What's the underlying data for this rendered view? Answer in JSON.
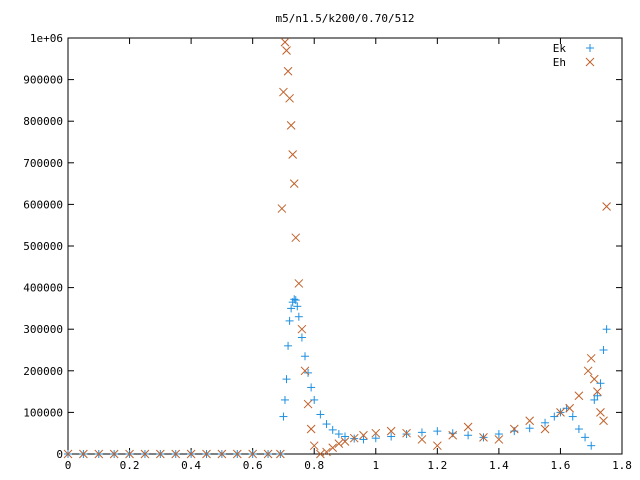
{
  "chart_data": {
    "type": "scatter",
    "title": "m5/n1.5/k200/0.70/512",
    "xlabel": "",
    "ylabel": "",
    "xlim": [
      0,
      1.8
    ],
    "ylim": [
      0,
      1000000
    ],
    "x_ticks": [
      "0",
      "0.2",
      "0.4",
      "0.6",
      "0.8",
      "1",
      "1.2",
      "1.4",
      "1.6",
      "1.8"
    ],
    "x_tick_values": [
      0,
      0.2,
      0.4,
      0.6,
      0.8,
      1.0,
      1.2,
      1.4,
      1.6,
      1.8
    ],
    "y_ticks": [
      "0",
      "100000",
      "200000",
      "300000",
      "400000",
      "500000",
      "600000",
      "700000",
      "800000",
      "900000",
      "1e+06"
    ],
    "y_tick_values": [
      0,
      100000,
      200000,
      300000,
      400000,
      500000,
      600000,
      700000,
      800000,
      900000,
      1000000
    ],
    "grid": false,
    "legend_position": "top-right",
    "series": [
      {
        "name": "Ek",
        "marker": "plus",
        "color": "#1e90e0",
        "x": [
          0.0,
          0.05,
          0.1,
          0.15,
          0.2,
          0.25,
          0.3,
          0.35,
          0.4,
          0.45,
          0.5,
          0.55,
          0.6,
          0.65,
          0.69,
          0.7,
          0.705,
          0.71,
          0.715,
          0.72,
          0.725,
          0.73,
          0.735,
          0.74,
          0.745,
          0.75,
          0.76,
          0.77,
          0.78,
          0.79,
          0.8,
          0.82,
          0.84,
          0.86,
          0.88,
          0.9,
          0.93,
          0.96,
          1.0,
          1.05,
          1.1,
          1.15,
          1.2,
          1.25,
          1.3,
          1.35,
          1.4,
          1.45,
          1.5,
          1.55,
          1.58,
          1.6,
          1.62,
          1.64,
          1.66,
          1.68,
          1.7,
          1.71,
          1.72,
          1.73,
          1.74,
          1.75
        ],
        "y": [
          0,
          0,
          0,
          0,
          0,
          0,
          0,
          0,
          0,
          0,
          0,
          0,
          0,
          0,
          0,
          90000,
          130000,
          180000,
          260000,
          320000,
          350000,
          365000,
          372000,
          370000,
          355000,
          330000,
          280000,
          235000,
          195000,
          160000,
          130000,
          95000,
          72000,
          58000,
          48000,
          42000,
          37000,
          35000,
          38000,
          42000,
          48000,
          52000,
          55000,
          50000,
          45000,
          40000,
          48000,
          55000,
          62000,
          75000,
          90000,
          100000,
          110000,
          90000,
          60000,
          40000,
          20000,
          130000,
          140000,
          170000,
          250000,
          300000
        ]
      },
      {
        "name": "Eh",
        "marker": "cross",
        "color": "#c0602a",
        "x": [
          0.0,
          0.05,
          0.1,
          0.15,
          0.2,
          0.25,
          0.3,
          0.35,
          0.4,
          0.45,
          0.5,
          0.55,
          0.6,
          0.65,
          0.69,
          0.695,
          0.7,
          0.705,
          0.71,
          0.715,
          0.72,
          0.725,
          0.73,
          0.735,
          0.74,
          0.75,
          0.76,
          0.77,
          0.78,
          0.79,
          0.8,
          0.82,
          0.84,
          0.86,
          0.88,
          0.9,
          0.93,
          0.96,
          1.0,
          1.05,
          1.1,
          1.15,
          1.2,
          1.25,
          1.3,
          1.35,
          1.4,
          1.45,
          1.5,
          1.55,
          1.6,
          1.63,
          1.66,
          1.69,
          1.7,
          1.71,
          1.72,
          1.73,
          1.74,
          1.75
        ],
        "y": [
          0,
          0,
          0,
          0,
          0,
          0,
          0,
          0,
          0,
          0,
          0,
          0,
          0,
          0,
          0,
          590000,
          870000,
          990000,
          970000,
          920000,
          855000,
          790000,
          720000,
          650000,
          520000,
          410000,
          300000,
          200000,
          120000,
          60000,
          20000,
          0,
          5000,
          15000,
          25000,
          30000,
          38000,
          45000,
          50000,
          55000,
          50000,
          35000,
          20000,
          45000,
          65000,
          40000,
          35000,
          60000,
          80000,
          60000,
          100000,
          110000,
          140000,
          200000,
          230000,
          180000,
          150000,
          100000,
          80000,
          595000
        ]
      }
    ]
  }
}
